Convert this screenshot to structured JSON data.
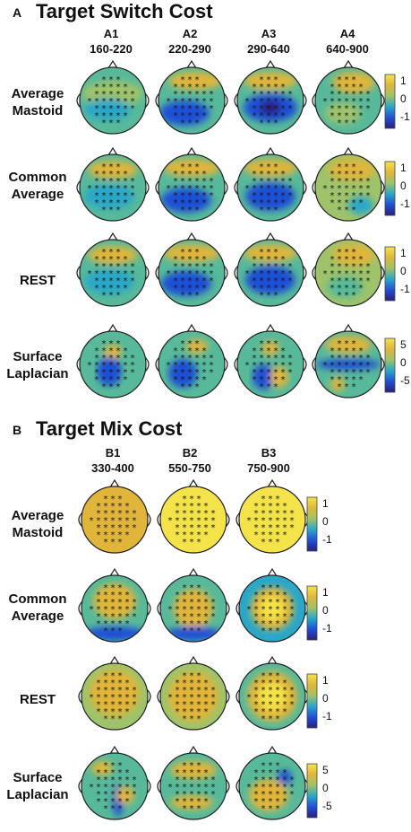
{
  "panel_a": {
    "letter": "A",
    "title": "Target Switch Cost",
    "columns": [
      {
        "id": "A1",
        "range": "160-220"
      },
      {
        "id": "A2",
        "range": "220-290"
      },
      {
        "id": "A3",
        "range": "290-640"
      },
      {
        "id": "A4",
        "range": "640-900"
      }
    ],
    "rows": [
      {
        "label_line1": "Average",
        "label_line2": "Mastoid",
        "scale": [
          "1",
          "0",
          "-1"
        ]
      },
      {
        "label_line1": "Common",
        "label_line2": "Average",
        "scale": [
          "1",
          "0",
          "-1"
        ]
      },
      {
        "label_line1": "REST",
        "label_line2": "",
        "scale": [
          "1",
          "0",
          "-1"
        ]
      },
      {
        "label_line1": "Surface",
        "label_line2": "Laplacian",
        "scale": [
          "5",
          "0",
          "-5"
        ]
      }
    ]
  },
  "panel_b": {
    "letter": "B",
    "title": "Target Mix Cost",
    "columns": [
      {
        "id": "B1",
        "range": "330-400"
      },
      {
        "id": "B2",
        "range": "550-750"
      },
      {
        "id": "B3",
        "range": "750-900"
      }
    ],
    "rows": [
      {
        "label_line1": "Average",
        "label_line2": "Mastoid",
        "scale": [
          "1",
          "0",
          "-1"
        ]
      },
      {
        "label_line1": "Common",
        "label_line2": "Average",
        "scale": [
          "1",
          "0",
          "-1"
        ]
      },
      {
        "label_line1": "REST",
        "label_line2": "",
        "scale": [
          "1",
          "0",
          "-1"
        ]
      },
      {
        "label_line1": "Surface",
        "label_line2": "Laplacian",
        "scale": [
          "5",
          "0",
          "-5"
        ]
      }
    ]
  },
  "colormap": {
    "stops": [
      "#2b1f7a",
      "#1f4fd6",
      "#2aa7c8",
      "#57b99a",
      "#9ec36a",
      "#e0b53a",
      "#f4e34a"
    ]
  }
}
